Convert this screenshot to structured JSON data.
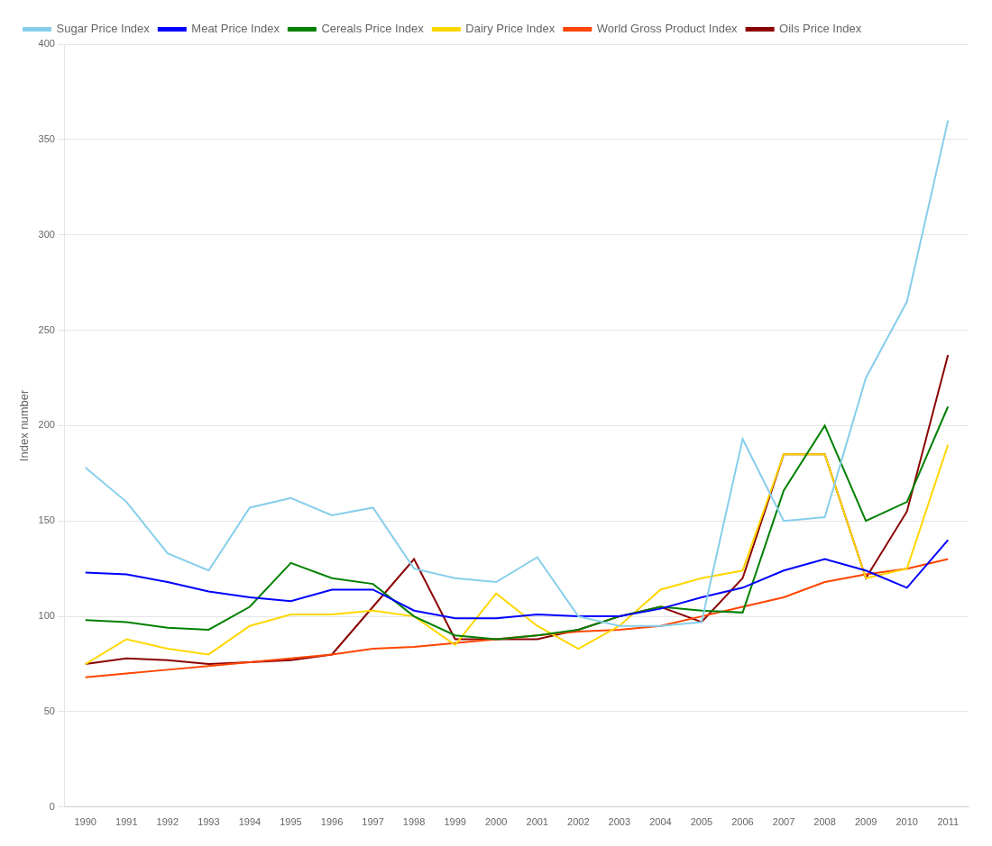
{
  "chart_data": {
    "type": "line",
    "y_label": "Index number",
    "categories": [
      "1990",
      "1991",
      "1992",
      "1993",
      "1994",
      "1995",
      "1996",
      "1997",
      "1998",
      "1999",
      "2000",
      "2001",
      "2002",
      "2003",
      "2004",
      "2005",
      "2006",
      "2007",
      "2008",
      "2009",
      "2010",
      "2011"
    ],
    "series": [
      {
        "name": "Sugar Price Index",
        "color": "#87CEEB",
        "values": [
          178,
          160,
          133,
          124,
          157,
          162,
          153,
          157,
          125,
          120,
          118,
          131,
          100,
          95,
          95,
          97,
          193,
          150,
          152,
          225,
          265,
          360
        ]
      },
      {
        "name": "Meat Price Index",
        "color": "#0000FF",
        "values": [
          123,
          122,
          118,
          113,
          110,
          108,
          114,
          114,
          103,
          99,
          99,
          101,
          100,
          100,
          104,
          110,
          115,
          124,
          130,
          124,
          115,
          140
        ]
      },
      {
        "name": "Cereals Price Index",
        "color": "#008000",
        "values": [
          98,
          97,
          94,
          93,
          105,
          128,
          120,
          117,
          100,
          90,
          88,
          90,
          93,
          100,
          105,
          103,
          102,
          166,
          200,
          150,
          160,
          210
        ]
      },
      {
        "name": "Dairy Price Index",
        "color": "#FFD700",
        "values": [
          75,
          88,
          83,
          80,
          95,
          101,
          101,
          103,
          100,
          85,
          112,
          95,
          83,
          95,
          114,
          120,
          124,
          185,
          185,
          120,
          125,
          190
        ]
      },
      {
        "name": "World Gross Product Index",
        "color": "#FF4500",
        "values": [
          68,
          70,
          72,
          74,
          76,
          78,
          80,
          83,
          84,
          86,
          88,
          90,
          92,
          93,
          95,
          100,
          105,
          110,
          118,
          122,
          125,
          130
        ]
      },
      {
        "name": "Oils Price Index",
        "color": "#8B0000",
        "values": [
          75,
          78,
          77,
          75,
          76,
          77,
          80,
          105,
          130,
          88,
          88,
          88,
          93,
          100,
          105,
          97,
          120,
          185,
          185,
          120,
          155,
          237
        ]
      }
    ],
    "ylim": [
      0,
      400
    ],
    "yticks": [
      0,
      50,
      100,
      150,
      200,
      250,
      300,
      350,
      400
    ],
    "grid": "y",
    "legend": "upper left"
  }
}
